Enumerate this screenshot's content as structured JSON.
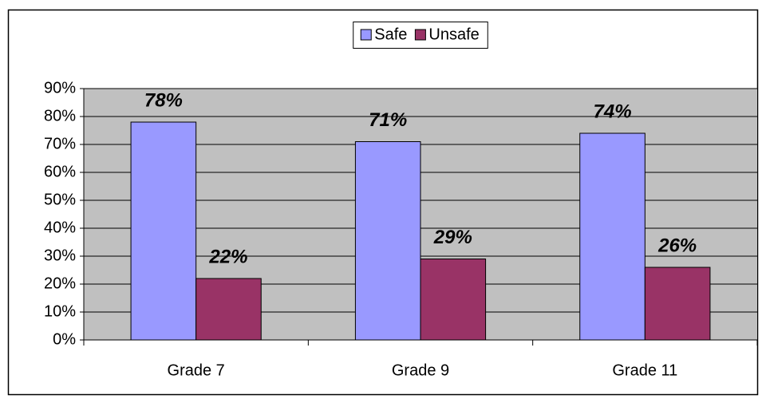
{
  "chart_data": {
    "type": "bar",
    "categories": [
      "Grade 7",
      "Grade 9",
      "Grade 11"
    ],
    "series": [
      {
        "name": "Safe",
        "color": "#9999ff",
        "values": [
          78,
          71,
          74
        ],
        "value_labels": [
          "78%",
          "71%",
          "74%"
        ]
      },
      {
        "name": "Unsafe",
        "color": "#993366",
        "values": [
          22,
          29,
          26
        ],
        "value_labels": [
          "22%",
          "29%",
          "26%"
        ]
      }
    ],
    "ylim": [
      0,
      90
    ],
    "yticks": [
      {
        "value": 0,
        "label": "0%"
      },
      {
        "value": 10,
        "label": "10%"
      },
      {
        "value": 20,
        "label": "20%"
      },
      {
        "value": 30,
        "label": "30%"
      },
      {
        "value": 40,
        "label": "40%"
      },
      {
        "value": 50,
        "label": "50%"
      },
      {
        "value": 60,
        "label": "60%"
      },
      {
        "value": 70,
        "label": "70%"
      },
      {
        "value": 80,
        "label": "80%"
      },
      {
        "value": 90,
        "label": "90%"
      }
    ],
    "grid": true,
    "plot_background": "#c0c0c0",
    "legend": "top"
  }
}
